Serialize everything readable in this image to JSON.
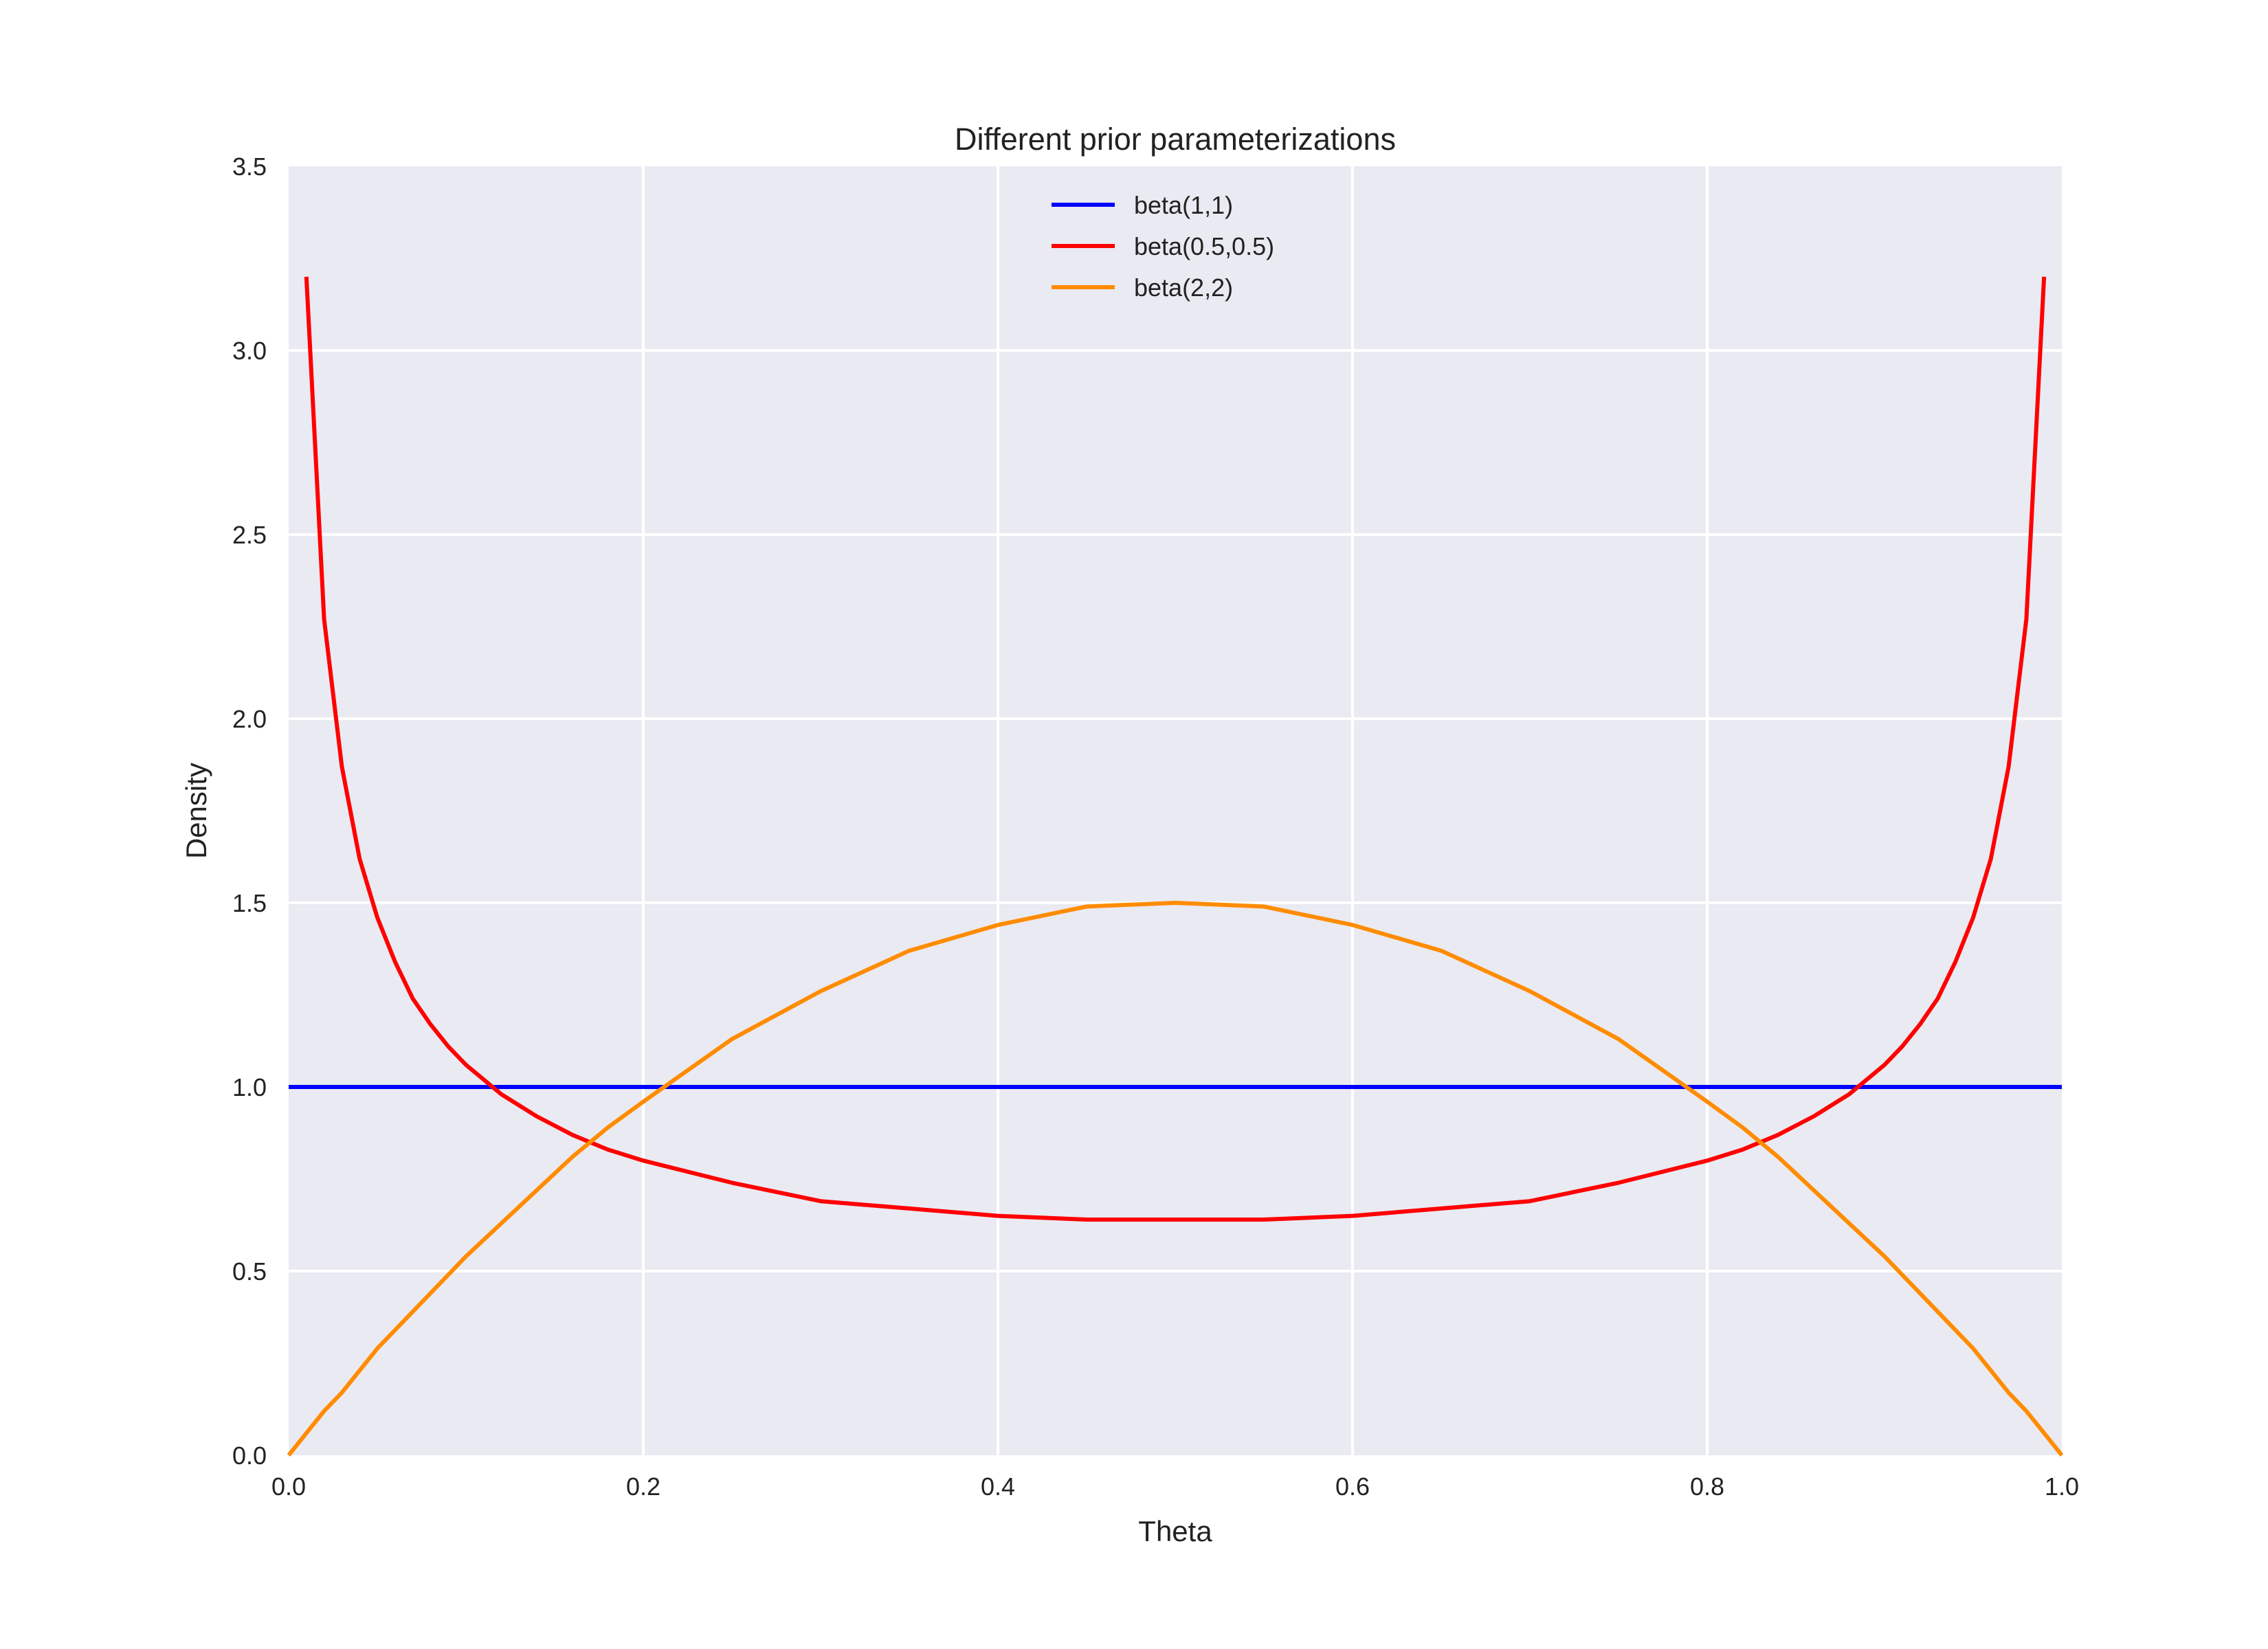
{
  "chart_data": {
    "type": "line",
    "title": "Different prior parameterizations",
    "xlabel": "Theta",
    "ylabel": "Density",
    "xlim": [
      0.0,
      1.0
    ],
    "ylim": [
      0.0,
      3.5
    ],
    "xticks": [
      "0.0",
      "0.2",
      "0.4",
      "0.6",
      "0.8",
      "1.0"
    ],
    "yticks": [
      "0.0",
      "0.5",
      "1.0",
      "1.5",
      "2.0",
      "2.5",
      "3.0",
      "3.5"
    ],
    "grid": true,
    "legend_position": "top-center",
    "x": [
      0.0,
      0.01,
      0.02,
      0.03,
      0.04,
      0.05,
      0.06,
      0.07,
      0.08,
      0.09,
      0.1,
      0.12,
      0.14,
      0.16,
      0.18,
      0.2,
      0.25,
      0.3,
      0.35,
      0.4,
      0.45,
      0.5,
      0.55,
      0.6,
      0.65,
      0.7,
      0.75,
      0.8,
      0.82,
      0.84,
      0.86,
      0.88,
      0.9,
      0.91,
      0.92,
      0.93,
      0.94,
      0.95,
      0.96,
      0.97,
      0.98,
      0.99,
      1.0
    ],
    "series": [
      {
        "name": "beta(1,1)",
        "color": "#0000ff",
        "values": [
          1.0,
          1.0,
          1.0,
          1.0,
          1.0,
          1.0,
          1.0,
          1.0,
          1.0,
          1.0,
          1.0,
          1.0,
          1.0,
          1.0,
          1.0,
          1.0,
          1.0,
          1.0,
          1.0,
          1.0,
          1.0,
          1.0,
          1.0,
          1.0,
          1.0,
          1.0,
          1.0,
          1.0,
          1.0,
          1.0,
          1.0,
          1.0,
          1.0,
          1.0,
          1.0,
          1.0,
          1.0,
          1.0,
          1.0,
          1.0,
          1.0,
          1.0,
          1.0
        ]
      },
      {
        "name": "beta(0.5,0.5)",
        "color": "#ff0000",
        "values": [
          null,
          3.2,
          2.27,
          1.87,
          1.62,
          1.46,
          1.34,
          1.24,
          1.17,
          1.11,
          1.06,
          0.98,
          0.92,
          0.87,
          0.83,
          0.8,
          0.74,
          0.69,
          0.67,
          0.65,
          0.64,
          0.64,
          0.64,
          0.65,
          0.67,
          0.69,
          0.74,
          0.8,
          0.83,
          0.87,
          0.92,
          0.98,
          1.06,
          1.11,
          1.17,
          1.24,
          1.34,
          1.46,
          1.62,
          1.87,
          2.27,
          3.2,
          null
        ]
      },
      {
        "name": "beta(2,2)",
        "color": "#ff8c00",
        "values": [
          0.0,
          0.06,
          0.12,
          0.17,
          0.23,
          0.29,
          0.34,
          0.39,
          0.44,
          0.49,
          0.54,
          0.63,
          0.72,
          0.81,
          0.89,
          0.96,
          1.13,
          1.26,
          1.37,
          1.44,
          1.49,
          1.5,
          1.49,
          1.44,
          1.37,
          1.26,
          1.13,
          0.96,
          0.89,
          0.81,
          0.72,
          0.63,
          0.54,
          0.49,
          0.44,
          0.39,
          0.34,
          0.29,
          0.23,
          0.17,
          0.12,
          0.06,
          0.0
        ]
      }
    ]
  }
}
